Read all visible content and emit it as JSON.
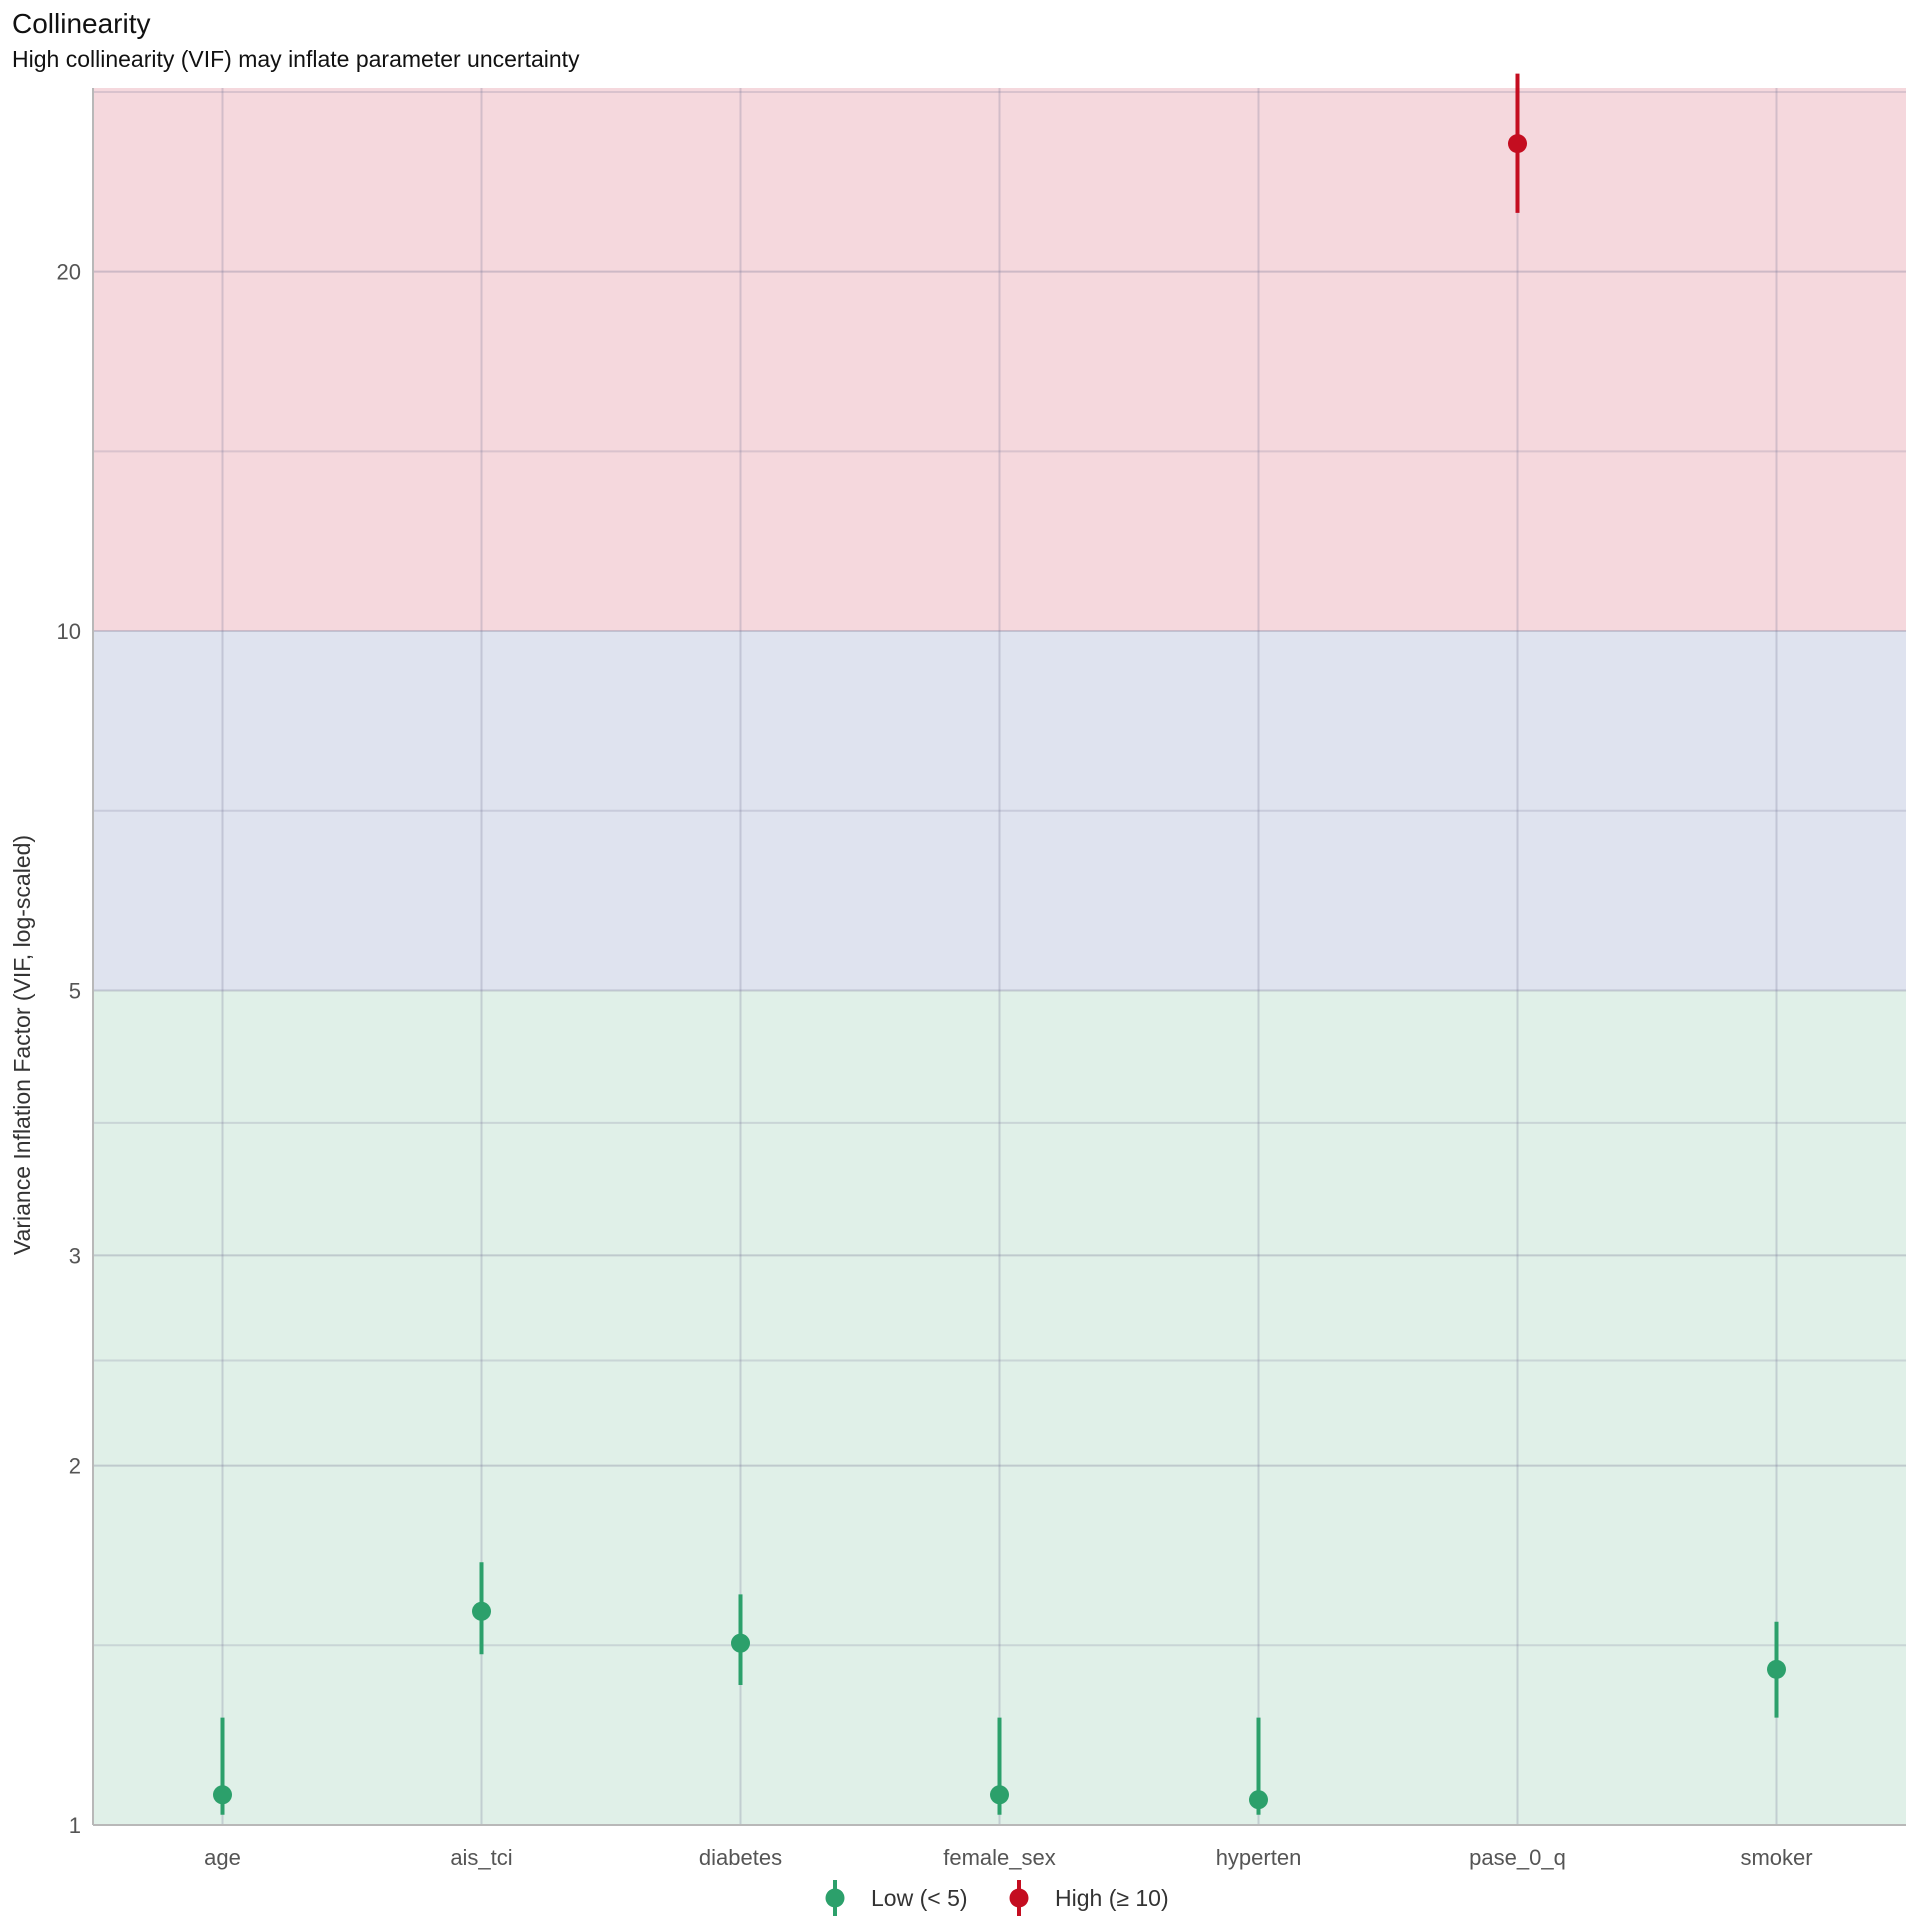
{
  "chart_data": {
    "type": "scatter",
    "title": "Collinearity",
    "subtitle": "High collinearity (VIF) may inflate parameter uncertainty",
    "xlabel": "",
    "ylabel": "Variance Inflation Factor (VIF, log-scaled)",
    "y_scale": "log",
    "ylim": [
      1,
      28.5
    ],
    "y_ticks": [
      1,
      2,
      3,
      5,
      10,
      20
    ],
    "grid": true,
    "categories": [
      "age",
      "ais_tci",
      "diabetes",
      "female_sex",
      "hyperten",
      "pase_0_q",
      "smoker"
    ],
    "series": [
      {
        "name": "Low (< 5)",
        "color": "#2ca06b",
        "points": [
          {
            "x": "age",
            "y": 1.06,
            "low": 1.02,
            "high": 1.23
          },
          {
            "x": "ais_tci",
            "y": 1.51,
            "low": 1.39,
            "high": 1.66
          },
          {
            "x": "diabetes",
            "y": 1.42,
            "low": 1.31,
            "high": 1.56
          },
          {
            "x": "female_sex",
            "y": 1.06,
            "low": 1.02,
            "high": 1.23
          },
          {
            "x": "hyperten",
            "y": 1.05,
            "low": 1.02,
            "high": 1.23
          },
          {
            "x": "smoker",
            "y": 1.35,
            "low": 1.23,
            "high": 1.48
          }
        ]
      },
      {
        "name": "High (≥ 10)",
        "color": "#c40d20",
        "points": [
          {
            "x": "pase_0_q",
            "y": 25.6,
            "low": 22.4,
            "high": 29.3
          }
        ]
      }
    ],
    "bands": [
      {
        "from": 1,
        "to": 5,
        "color": "#e0f0e8"
      },
      {
        "from": 5,
        "to": 10,
        "color": "#dfe3ef"
      },
      {
        "from": 10,
        "to": 28.5,
        "color": "#f5d8dd"
      }
    ],
    "legend": {
      "placement": "bottom"
    }
  }
}
